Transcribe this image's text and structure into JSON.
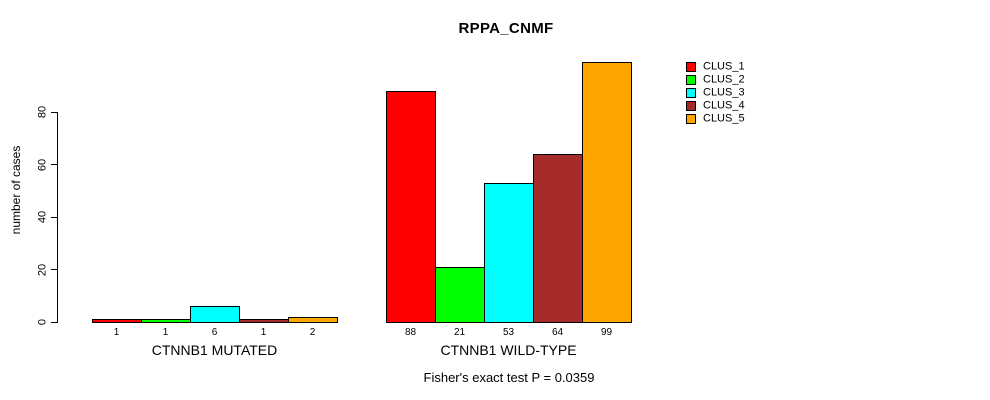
{
  "chart_data": {
    "type": "bar",
    "title": "RPPA_CNMF",
    "ylabel": "number of cases",
    "xlabel": "",
    "categories": [
      "CTNNB1 MUTATED",
      "CTNNB1 WILD-TYPE"
    ],
    "series": [
      {
        "name": "CLUS_1",
        "color": "#FF0000",
        "values": [
          1,
          88
        ]
      },
      {
        "name": "CLUS_2",
        "color": "#00FF00",
        "values": [
          1,
          21
        ]
      },
      {
        "name": "CLUS_3",
        "color": "#00FFFF",
        "values": [
          6,
          53
        ]
      },
      {
        "name": "CLUS_4",
        "color": "#A52A2A",
        "values": [
          1,
          64
        ]
      },
      {
        "name": "CLUS_5",
        "color": "#FFA500",
        "values": [
          2,
          99
        ]
      }
    ],
    "yticks": [
      0,
      20,
      40,
      60,
      80
    ],
    "ylim": [
      0,
      99
    ],
    "grid": false,
    "legend_position": "top-right",
    "bar_border_color": "#000000",
    "annotation": "Fisher's exact test P = 0.0359"
  }
}
